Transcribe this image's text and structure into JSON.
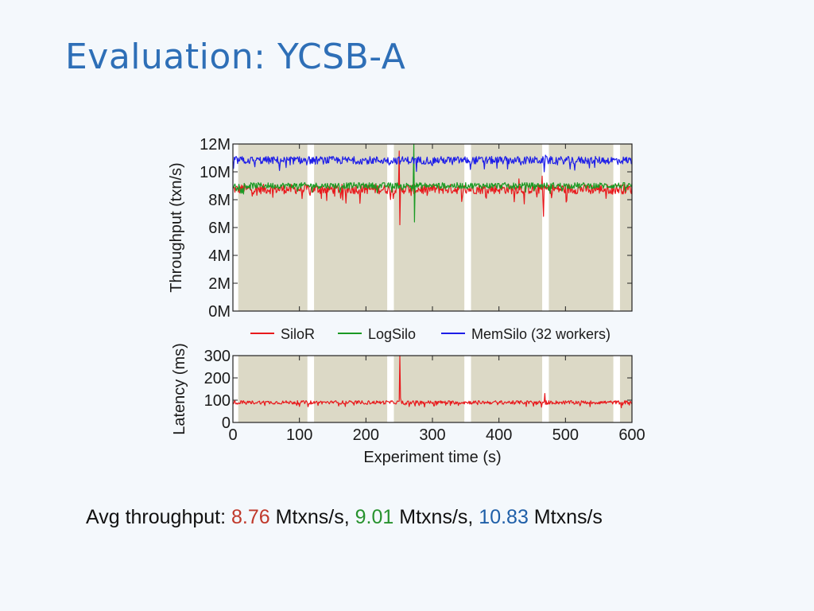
{
  "slide": {
    "title": "Evaluation: YCSB-A"
  },
  "summary": {
    "prefix": "Avg throughput: ",
    "items": [
      {
        "value": "8.76",
        "unit": " Mtxns/s, ",
        "color": "#c0392b"
      },
      {
        "value": "9.01",
        "unit": " Mtxns/s, ",
        "color": "#27922e"
      },
      {
        "value": "10.83",
        "unit": " Mtxns/s",
        "color": "#1f5fa8"
      }
    ]
  },
  "colors": {
    "SiloR": "#e8191c",
    "LogSilo": "#1a9a24",
    "MemSilo": "#1e1ee8",
    "checkpoint_band": "#dcd9c6",
    "gap": "#ffffff"
  },
  "chart_data": [
    {
      "type": "line",
      "panel": "throughput",
      "title": "",
      "xlabel": "",
      "ylabel": "Throughput (txn/s)",
      "xlim": [
        0,
        600
      ],
      "ylim": [
        0,
        12000000
      ],
      "yticks": [
        "0M",
        "2M",
        "4M",
        "6M",
        "8M",
        "10M",
        "12M"
      ],
      "shaded_intervals": [
        [
          8,
          112
        ],
        [
          122,
          232
        ],
        [
          242,
          348
        ],
        [
          358,
          465
        ],
        [
          475,
          572
        ],
        [
          582,
          600
        ]
      ],
      "series": [
        {
          "name": "SiloR",
          "mean": 8760000,
          "noise": 350000,
          "spikes": [
            [
              250,
              11500000
            ],
            [
              251,
              6200000
            ],
            [
              268,
              8300000
            ],
            [
              465,
              9700000
            ],
            [
              467,
              6800000
            ],
            [
              430,
              9500000
            ]
          ]
        },
        {
          "name": "LogSilo",
          "mean": 9010000,
          "noise": 220000,
          "spikes": [
            [
              272,
              12000000
            ],
            [
              273,
              6400000
            ]
          ]
        },
        {
          "name": "MemSilo (32 workers)",
          "mean": 10830000,
          "noise": 280000,
          "spikes": [
            [
              70,
              10100000
            ],
            [
              468,
              10000000
            ],
            [
              470,
              11200000
            ]
          ]
        }
      ],
      "legend": {
        "placement": "below",
        "entries": [
          "SiloR",
          "LogSilo",
          "MemSilo (32 workers)"
        ]
      }
    },
    {
      "type": "line",
      "panel": "latency",
      "title": "",
      "xlabel": "Experiment time (s)",
      "ylabel": "Latency (ms)",
      "xlim": [
        0,
        600
      ],
      "ylim": [
        0,
        300
      ],
      "xticks": [
        "0",
        "100",
        "200",
        "300",
        "400",
        "500",
        "600"
      ],
      "yticks": [
        "0",
        "100",
        "200",
        "300"
      ],
      "shaded_intervals": [
        [
          8,
          112
        ],
        [
          122,
          232
        ],
        [
          242,
          348
        ],
        [
          358,
          465
        ],
        [
          475,
          572
        ],
        [
          582,
          600
        ]
      ],
      "series": [
        {
          "name": "SiloR",
          "mean": 90,
          "noise": 8,
          "spikes": [
            [
              251,
              300
            ],
            [
              252,
              110
            ],
            [
              469,
              130
            ]
          ]
        }
      ]
    }
  ]
}
